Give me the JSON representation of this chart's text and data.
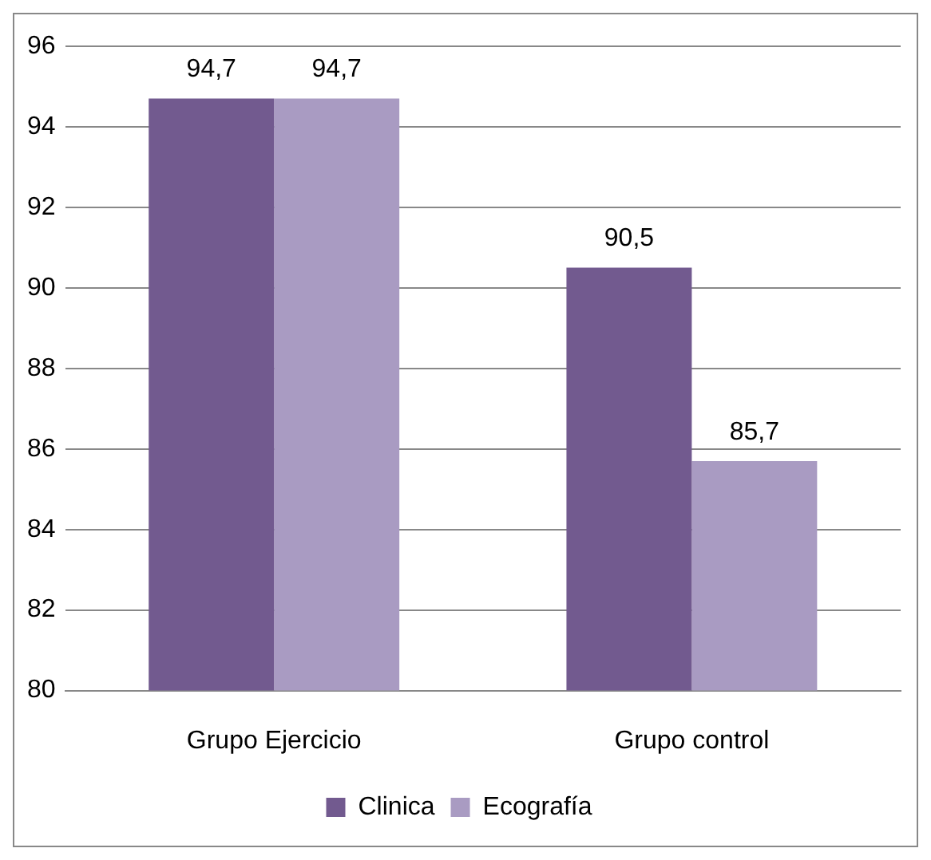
{
  "chart_data": {
    "type": "bar",
    "categories": [
      "Grupo Ejercicio",
      "Grupo control"
    ],
    "series": [
      {
        "name": "Clinica",
        "color": "#725a8f",
        "values": [
          94.7,
          90.5
        ],
        "value_labels": [
          "94,7",
          "90,5"
        ]
      },
      {
        "name": "Ecografía",
        "color": "#a99bc2",
        "values": [
          94.7,
          85.7
        ],
        "value_labels": [
          "94,7",
          "85,7"
        ]
      }
    ],
    "ylim": [
      80,
      96
    ],
    "yticks": [
      80,
      82,
      84,
      86,
      88,
      90,
      92,
      94,
      96
    ],
    "grid": "y",
    "legend": "bottom"
  }
}
